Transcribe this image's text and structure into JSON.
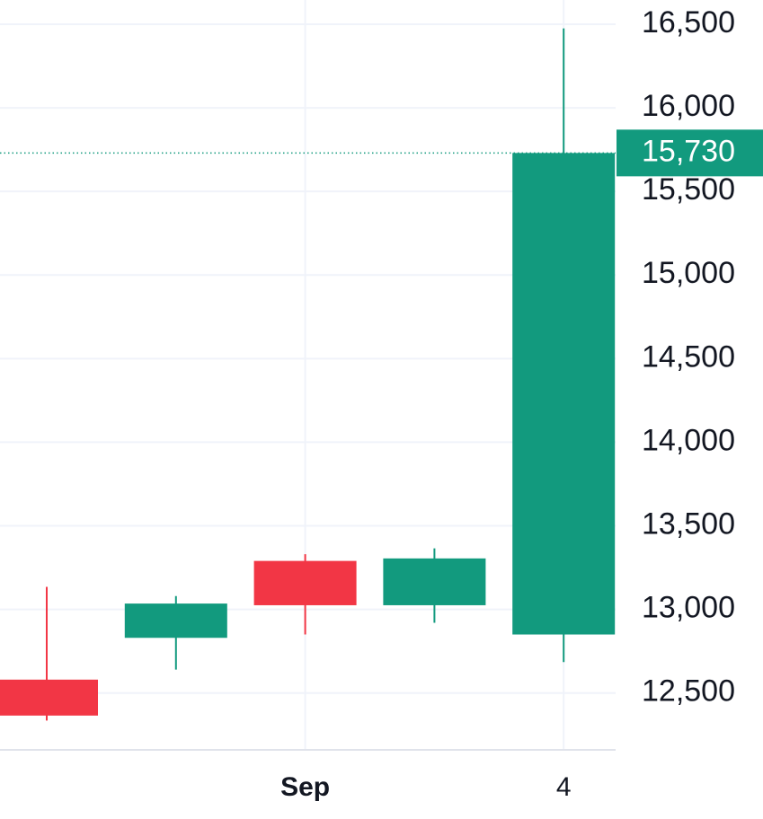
{
  "chart_data": {
    "type": "candlestick",
    "categories": [
      null,
      null,
      "Sep",
      null,
      "4"
    ],
    "open": [
      12580,
      12830,
      13290,
      13025,
      12850
    ],
    "high": [
      13135,
      13080,
      13330,
      13365,
      16475
    ],
    "low": [
      12335,
      12640,
      12850,
      12920,
      12685
    ],
    "close": [
      12365,
      13035,
      13025,
      13305,
      15730
    ],
    "up_color": "#129a7e",
    "down_color": "#f23645",
    "ylim": [
      12160,
      16645
    ],
    "yticks": [
      {
        "value": 12500,
        "label": "12,500"
      },
      {
        "value": 13000,
        "label": "13,000"
      },
      {
        "value": 13500,
        "label": "13,500"
      },
      {
        "value": 14000,
        "label": "14,000"
      },
      {
        "value": 14500,
        "label": "14,500"
      },
      {
        "value": 15000,
        "label": "15,000"
      },
      {
        "value": 15500,
        "label": "15,500"
      },
      {
        "value": 16000,
        "label": "16,000"
      },
      {
        "value": 16500,
        "label": "16,500"
      }
    ],
    "last_price_label": "15,730",
    "grid": true
  }
}
